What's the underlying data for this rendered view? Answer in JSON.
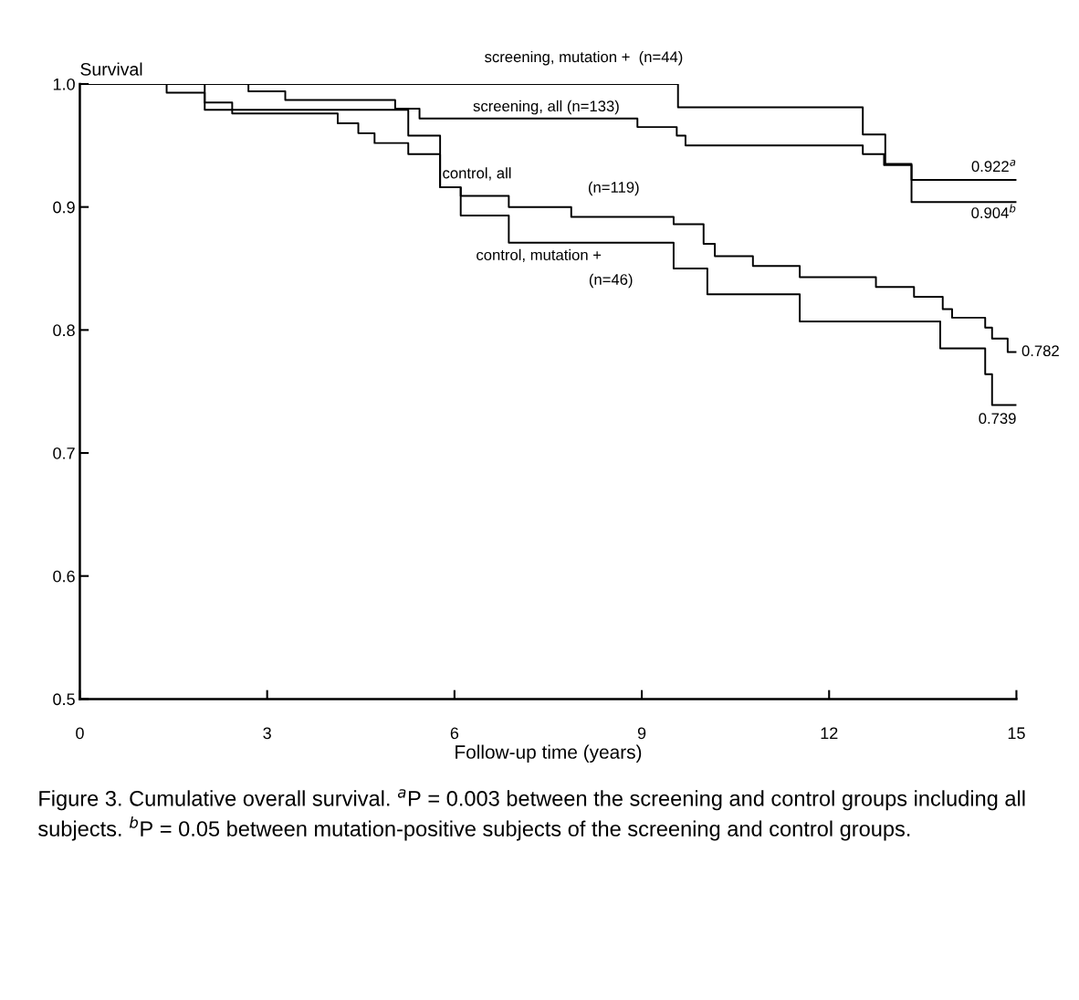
{
  "chart_data": {
    "type": "step",
    "xlabel": "Follow-up time (years)",
    "ylabel": "Survival",
    "xlim": [
      0,
      15
    ],
    "xticks": [
      0,
      3,
      6,
      9,
      12,
      15
    ],
    "ylim": [
      0.5,
      1.0
    ],
    "yticks": [
      0.5,
      0.6,
      0.7,
      0.8,
      0.9,
      {
        "value": 1.0,
        "label": "1.0"
      }
    ],
    "grid": false,
    "marker": "none",
    "line_style": "solid",
    "series": [
      {
        "name": "screening, mutation +  (n=44)",
        "color": "#000000",
        "x": [
          0,
          9.58,
          12.54,
          12.9,
          13.32,
          15
        ],
        "values": [
          1.0,
          0.981,
          0.959,
          0.935,
          0.904,
          0.904
        ],
        "value_labels": [
          null,
          null,
          null,
          null,
          null,
          "0.904$^{b}$"
        ]
      },
      {
        "name": "screening, all (n=133)",
        "color": "#000000",
        "x": [
          0,
          2.7,
          3.29,
          5.05,
          5.44,
          8.93,
          9.56,
          9.7,
          12.54,
          12.88,
          13.32,
          15
        ],
        "values": [
          1.0,
          0.994,
          0.987,
          0.98,
          0.972,
          0.965,
          0.958,
          0.95,
          0.943,
          0.934,
          0.922,
          0.922
        ],
        "value_labels": [
          null,
          null,
          null,
          null,
          null,
          null,
          null,
          null,
          null,
          null,
          null,
          "0.922$^{a}$"
        ]
      },
      {
        "name": "control, all",
        "color": "#000000",
        "x": [
          0,
          1.39,
          2.0,
          5.26,
          5.77,
          6.1,
          6.87,
          7.87,
          9.51,
          9.99,
          10.17,
          10.78,
          11.53,
          12.75,
          13.36,
          13.82,
          13.97,
          14.5,
          14.61,
          14.86,
          15
        ],
        "values": [
          1.0,
          0.993,
          0.979,
          0.958,
          0.916,
          0.909,
          0.9,
          0.892,
          0.886,
          0.87,
          0.86,
          0.852,
          0.843,
          0.835,
          0.827,
          0.817,
          0.81,
          0.802,
          0.793,
          0.782,
          0.782
        ],
        "value_labels": [
          null,
          null,
          null,
          null,
          null,
          null,
          null,
          null,
          null,
          null,
          null,
          null,
          null,
          null,
          null,
          null,
          null,
          null,
          null,
          null,
          "0.782"
        ]
      },
      {
        "name": "control, mutation +",
        "color": "#000000",
        "x": [
          0,
          2.0,
          2.44,
          4.13,
          4.46,
          4.72,
          5.26,
          5.77,
          6.1,
          6.87,
          9.51,
          10.05,
          11.53,
          13.78,
          14.5,
          14.61,
          15
        ],
        "values": [
          1.0,
          0.985,
          0.976,
          0.968,
          0.96,
          0.952,
          0.943,
          0.916,
          0.893,
          0.871,
          0.85,
          0.829,
          0.807,
          0.785,
          0.764,
          0.739,
          0.739
        ],
        "value_labels": [
          null,
          null,
          null,
          null,
          null,
          null,
          null,
          null,
          null,
          null,
          null,
          null,
          null,
          null,
          null,
          null,
          "0.739"
        ]
      }
    ],
    "annotations": [
      "(n=119)",
      "(n=46)",
      "Figure 3. Cumulative overall survival. $^{a}$P = 0.003 between the screening and control groups including all subjects. $^{b}$P = 0.05 between mutation-positive subjects of the screening and control groups."
    ]
  }
}
